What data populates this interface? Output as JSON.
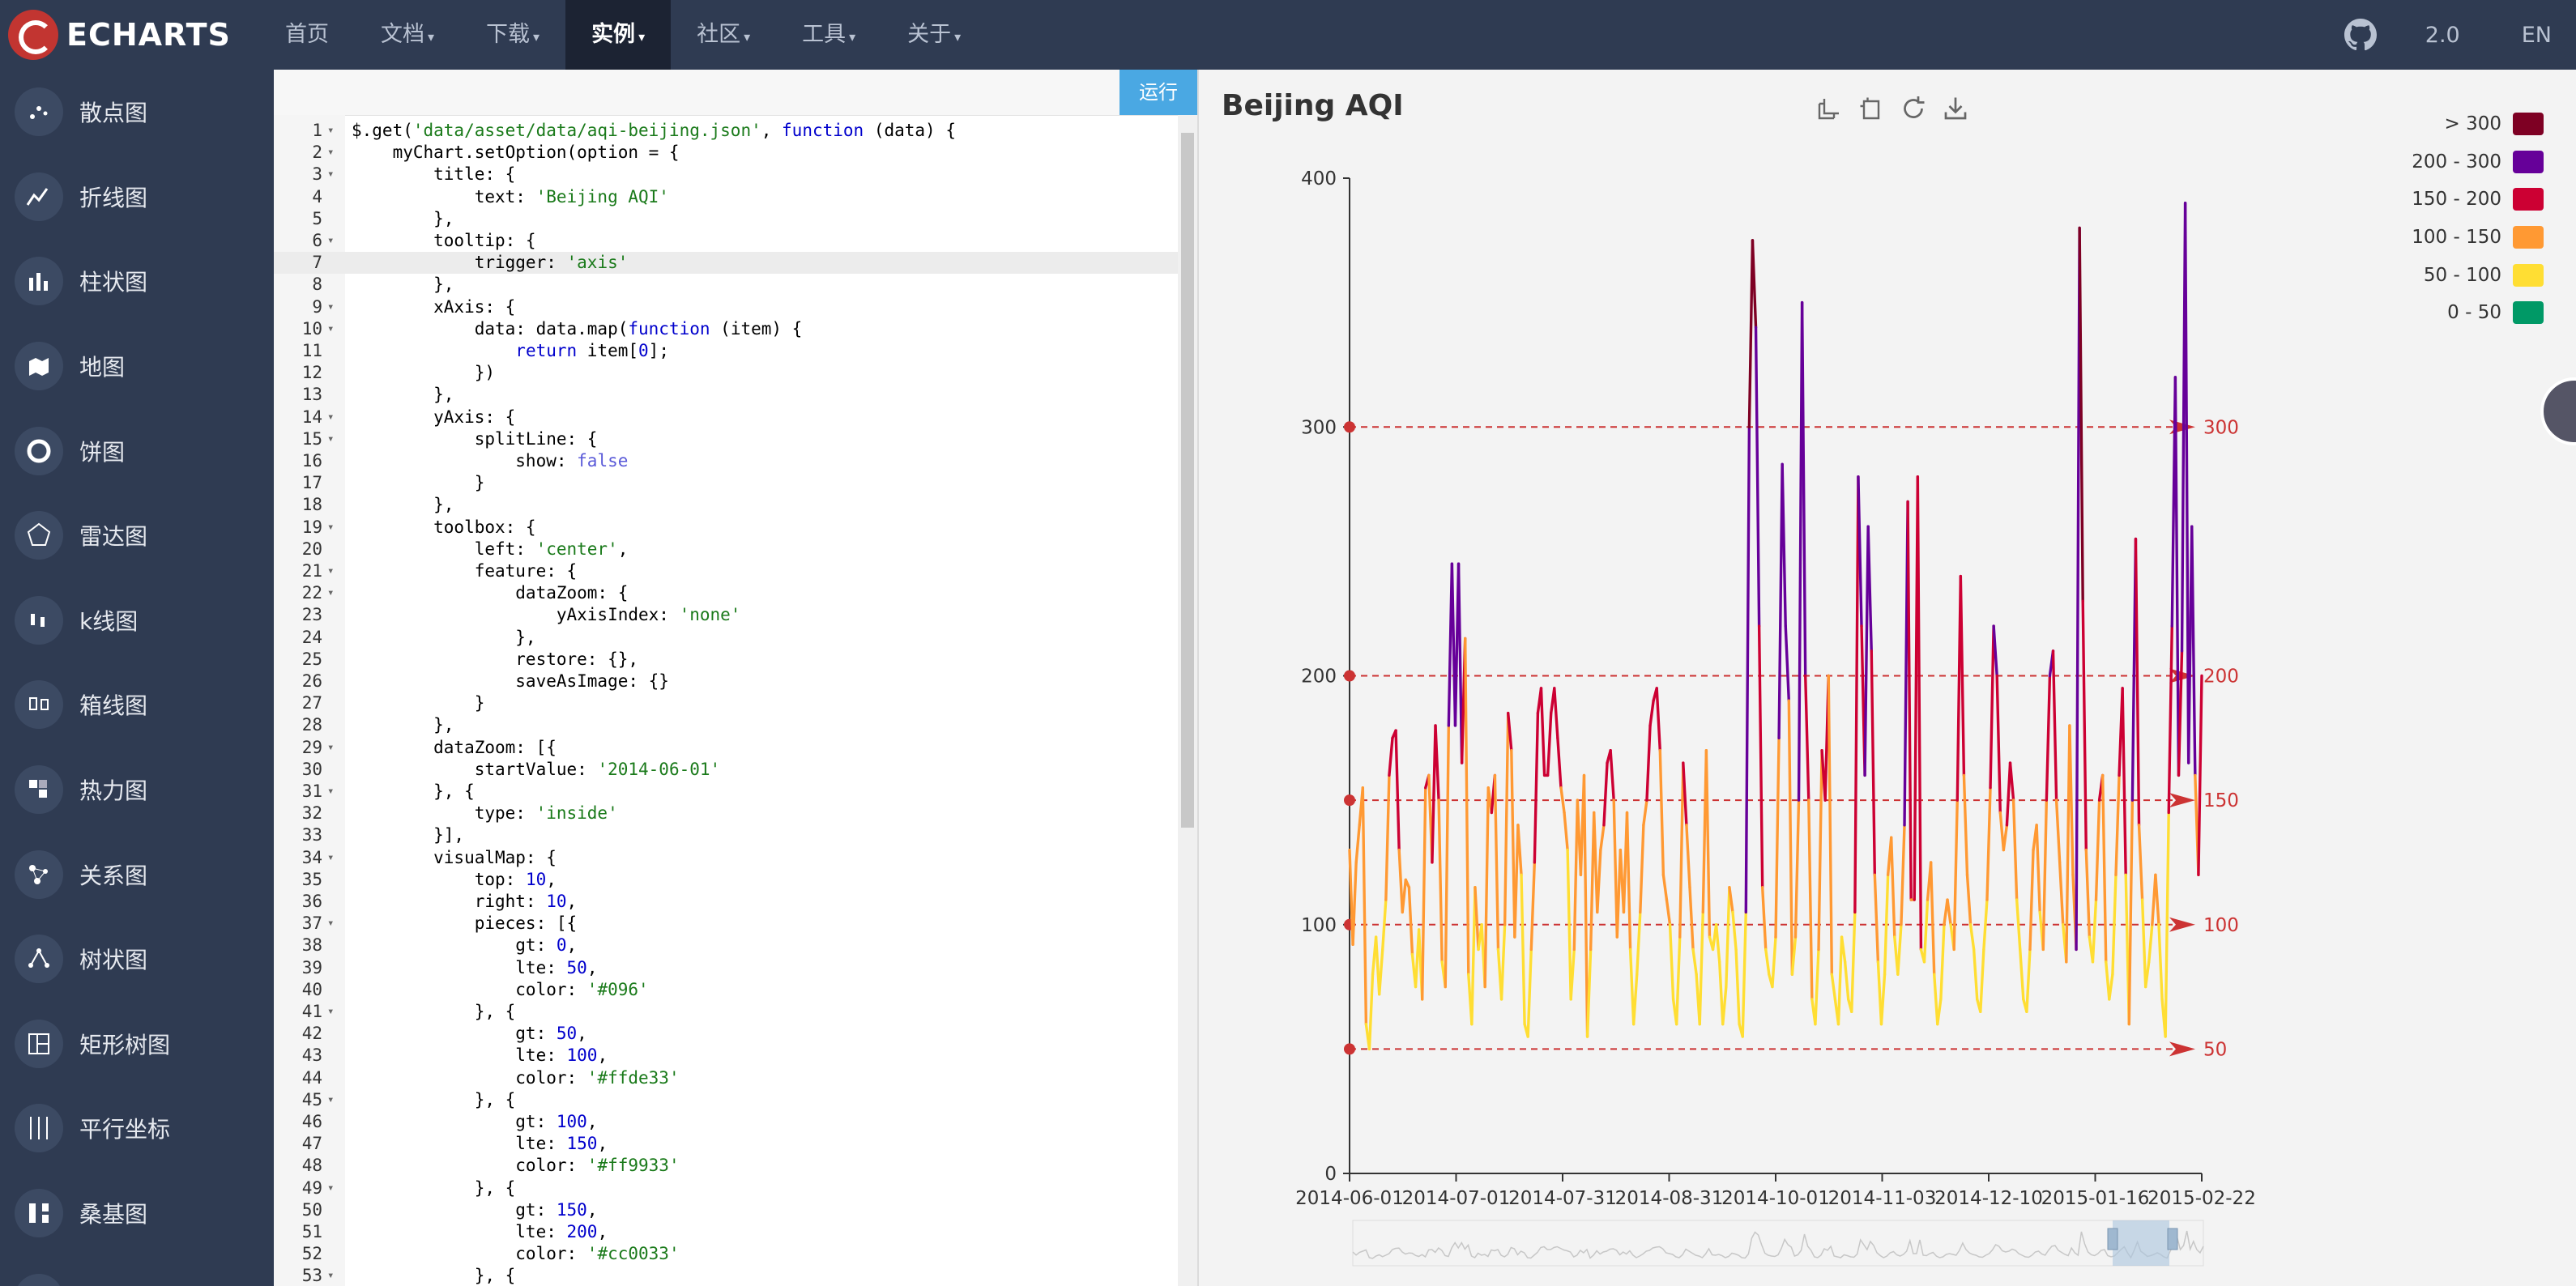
{
  "navbar": {
    "logo_text": "ECHARTS",
    "items": [
      {
        "label": "首页",
        "caret": false,
        "active": false
      },
      {
        "label": "文档",
        "caret": true,
        "active": false
      },
      {
        "label": "下载",
        "caret": true,
        "active": false
      },
      {
        "label": "实例",
        "caret": true,
        "active": true
      },
      {
        "label": "社区",
        "caret": true,
        "active": false
      },
      {
        "label": "工具",
        "caret": true,
        "active": false
      },
      {
        "label": "关于",
        "caret": true,
        "active": false
      }
    ],
    "version": "2.0",
    "language": "EN",
    "github_icon": "github-icon"
  },
  "sidebar": {
    "items": [
      {
        "label": "散点图",
        "icon": "scatter-icon"
      },
      {
        "label": "折线图",
        "icon": "line-chart-icon"
      },
      {
        "label": "柱状图",
        "icon": "bar-chart-icon"
      },
      {
        "label": "地图",
        "icon": "map-icon"
      },
      {
        "label": "饼图",
        "icon": "pie-chart-icon"
      },
      {
        "label": "雷达图",
        "icon": "radar-icon"
      },
      {
        "label": "k线图",
        "icon": "candlestick-icon"
      },
      {
        "label": "箱线图",
        "icon": "boxplot-icon"
      },
      {
        "label": "热力图",
        "icon": "heatmap-icon"
      },
      {
        "label": "关系图",
        "icon": "graph-icon"
      },
      {
        "label": "树状图",
        "icon": "tree-icon"
      },
      {
        "label": "矩形树图",
        "icon": "treemap-icon"
      },
      {
        "label": "平行坐标",
        "icon": "parallel-icon"
      },
      {
        "label": "桑基图",
        "icon": "sankey-icon"
      },
      {
        "label": "",
        "icon": "more-icon"
      }
    ]
  },
  "editor": {
    "run_label": "运行",
    "highlighted_line": 7,
    "lines": [
      "$.get('data/asset/data/aqi-beijing.json', function (data) {",
      "    myChart.setOption(option = {",
      "        title: {",
      "            text: 'Beijing AQI'",
      "        },",
      "        tooltip: {",
      "            trigger: 'axis'",
      "        },",
      "        xAxis: {",
      "            data: data.map(function (item) {",
      "                return item[0];",
      "            })",
      "        },",
      "        yAxis: {",
      "            splitLine: {",
      "                show: false",
      "            }",
      "        },",
      "        toolbox: {",
      "            left: 'center',",
      "            feature: {",
      "                dataZoom: {",
      "                    yAxisIndex: 'none'",
      "                },",
      "                restore: {},",
      "                saveAsImage: {}",
      "            }",
      "        },",
      "        dataZoom: [{",
      "            startValue: '2014-06-01'",
      "        }, {",
      "            type: 'inside'",
      "        }],",
      "        visualMap: {",
      "            top: 10,",
      "            right: 10,",
      "            pieces: [{",
      "                gt: 0,",
      "                lte: 50,",
      "                color: '#096'",
      "            }, {",
      "                gt: 50,",
      "                lte: 100,",
      "                color: '#ffde33'",
      "            }, {",
      "                gt: 100,",
      "                lte: 150,",
      "                color: '#ff9933'",
      "            }, {",
      "                gt: 150,",
      "                lte: 200,",
      "                color: '#cc0033'",
      "            }, {"
    ],
    "fold_lines": [
      1,
      2,
      3,
      6,
      9,
      10,
      14,
      15,
      19,
      21,
      22,
      29,
      31,
      34,
      37,
      41,
      45,
      49,
      53
    ]
  },
  "chart": {
    "title": "Beijing AQI",
    "toolbox_icons": [
      "zoom-area-icon",
      "zoom-reset-icon",
      "restore-icon",
      "save-image-icon"
    ],
    "legend": [
      {
        "label": "> 300",
        "color": "#7e0023"
      },
      {
        "label": "200 - 300",
        "color": "#660099"
      },
      {
        "label": "150 - 200",
        "color": "#cc0033"
      },
      {
        "label": "100 - 150",
        "color": "#ff9933"
      },
      {
        "label": "50 - 100",
        "color": "#ffde33"
      },
      {
        "label": "0 - 50",
        "color": "#009966"
      }
    ]
  },
  "chart_data": {
    "type": "line",
    "title": "Beijing AQI",
    "x_tick_labels": [
      "2014-06-01",
      "2014-07-01",
      "2014-07-31",
      "2014-08-31",
      "2014-10-01",
      "2014-11-03",
      "2014-12-10",
      "2015-01-16",
      "2015-02-22"
    ],
    "y_ticks": [
      0,
      100,
      200,
      300,
      400
    ],
    "ylim": [
      0,
      400
    ],
    "mark_lines": [
      50,
      100,
      150,
      200,
      300
    ],
    "mark_line_color": "#cc3333",
    "grid": false,
    "legend_position": "top-right",
    "series": [
      {
        "values": [
          130,
          92,
          125,
          140,
          155,
          60,
          50,
          80,
          95,
          72,
          90,
          110,
          160,
          175,
          178,
          130,
          105,
          118,
          115,
          88,
          75,
          98,
          70,
          155,
          160,
          125,
          180,
          150,
          85,
          75,
          180,
          245,
          180,
          245,
          165,
          215,
          80,
          60,
          115,
          90,
          100,
          75,
          155,
          145,
          160,
          90,
          70,
          100,
          185,
          170,
          95,
          140,
          120,
          60,
          55,
          90,
          125,
          185,
          195,
          160,
          160,
          185,
          195,
          175,
          155,
          145,
          130,
          70,
          90,
          150,
          120,
          160,
          55,
          90,
          145,
          105,
          130,
          140,
          165,
          170,
          150,
          95,
          130,
          105,
          145,
          90,
          60,
          80,
          105,
          140,
          150,
          180,
          190,
          195,
          170,
          120,
          110,
          100,
          70,
          60,
          95,
          165,
          140,
          115,
          90,
          80,
          60,
          105,
          170,
          95,
          90,
          100,
          85,
          60,
          75,
          115,
          105,
          90,
          60,
          55,
          105,
          300,
          375,
          340,
          220,
          115,
          90,
          80,
          75,
          95,
          175,
          285,
          220,
          190,
          80,
          95,
          150,
          350,
          200,
          150,
          70,
          60,
          90,
          170,
          150,
          200,
          80,
          70,
          60,
          95,
          85,
          70,
          65,
          105,
          280,
          220,
          160,
          260,
          210,
          120,
          85,
          60,
          80,
          120,
          135,
          95,
          80,
          100,
          140,
          270,
          110,
          110,
          280,
          90,
          85,
          110,
          125,
          80,
          60,
          70,
          100,
          110,
          100,
          90,
          150,
          240,
          160,
          120,
          100,
          90,
          70,
          65,
          90,
          110,
          155,
          220,
          200,
          145,
          130,
          140,
          165,
          150,
          110,
          90,
          70,
          65,
          90,
          130,
          140,
          105,
          90,
          150,
          200,
          210,
          150,
          125,
          100,
          85,
          180,
          120,
          90,
          380,
          230,
          130,
          95,
          85,
          110,
          150,
          160,
          85,
          70,
          80,
          120,
          160,
          195,
          120,
          60,
          150,
          255,
          140,
          110,
          75,
          85,
          100,
          120,
          100,
          70,
          55,
          145,
          220,
          320,
          160,
          210,
          390,
          165,
          260,
          160,
          120,
          200
        ]
      }
    ]
  }
}
